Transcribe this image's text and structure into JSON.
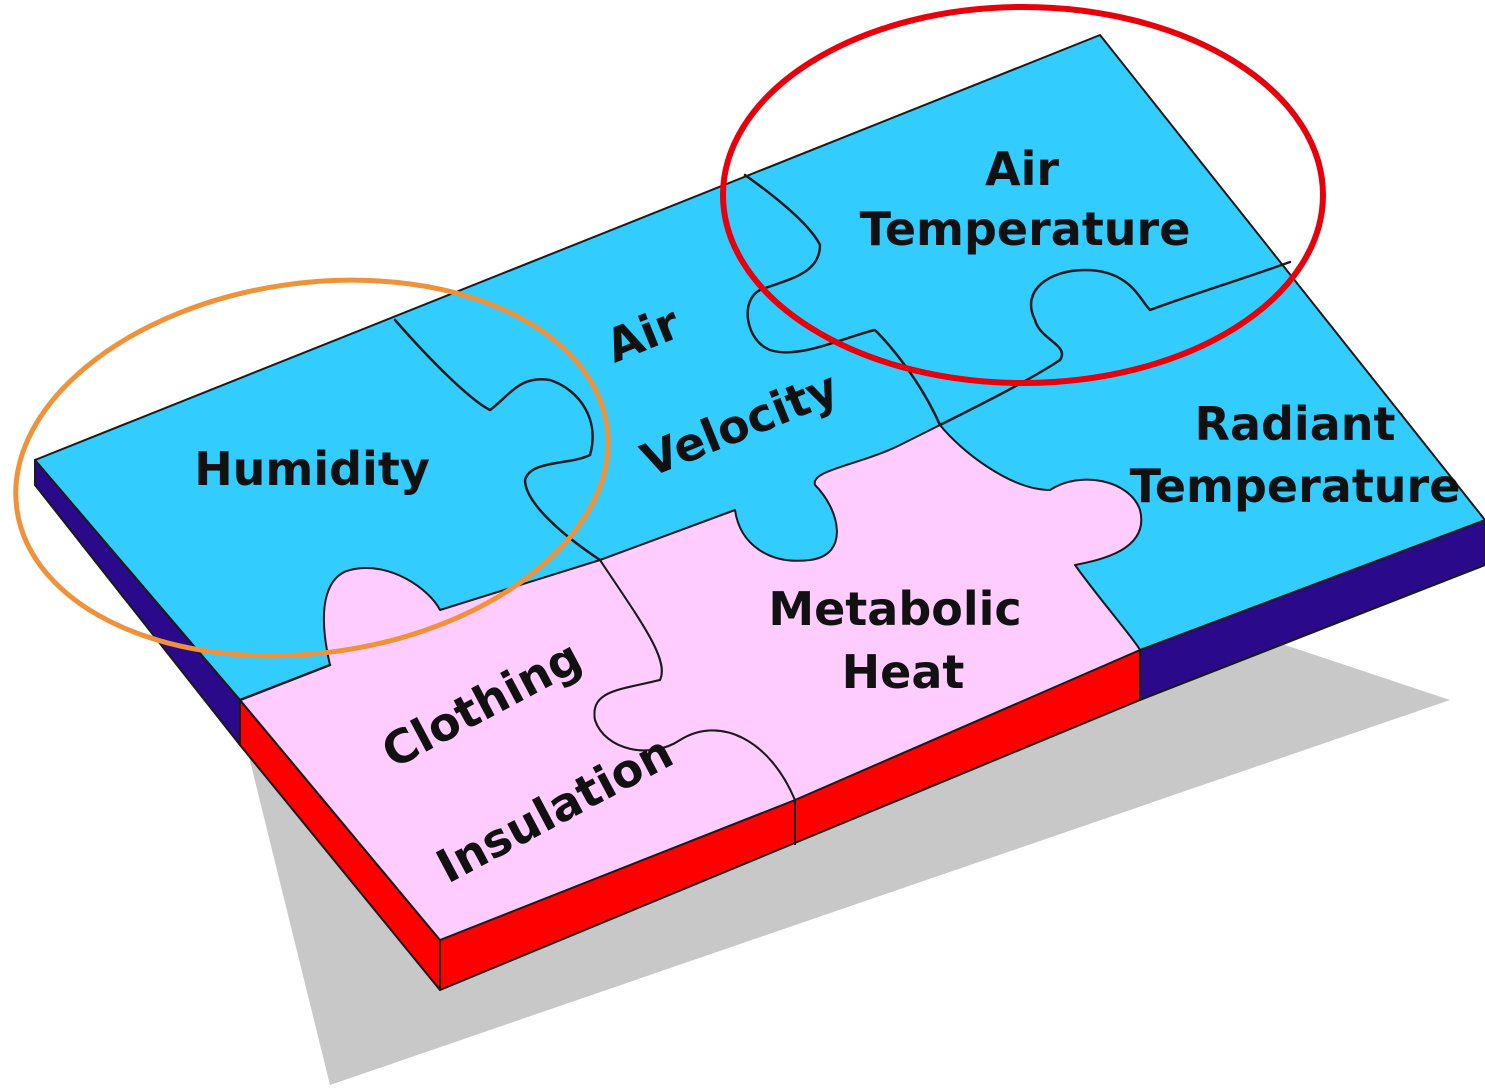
{
  "pieces": [
    {
      "id": "humidity",
      "lines": [
        "Humidity"
      ]
    },
    {
      "id": "air-velocity",
      "lines": [
        "Air",
        "Velocity"
      ]
    },
    {
      "id": "air-temperature",
      "lines": [
        "Air",
        "Temperature"
      ]
    },
    {
      "id": "radiant-temperature",
      "lines": [
        "Radiant",
        "Temperature"
      ]
    },
    {
      "id": "metabolic-heat",
      "lines": [
        "Metabolic",
        "Heat"
      ]
    },
    {
      "id": "clothing-insulation",
      "lines": [
        "Clothing",
        "Insulation"
      ]
    }
  ],
  "colors": {
    "environmental_piece": "#33ccff",
    "personal_piece": "#ffccff",
    "back_side": "#2a0a8a",
    "front_side": "#ff0000",
    "shadow": "#c8c8c8",
    "humidity_highlight": "#f0923a",
    "air_temperature_highlight": "#e8000b"
  },
  "highlights": [
    {
      "name": "humidity-highlight",
      "color_key": "humidity_highlight"
    },
    {
      "name": "air-temperature-highlight",
      "color_key": "air_temperature_highlight"
    }
  ]
}
